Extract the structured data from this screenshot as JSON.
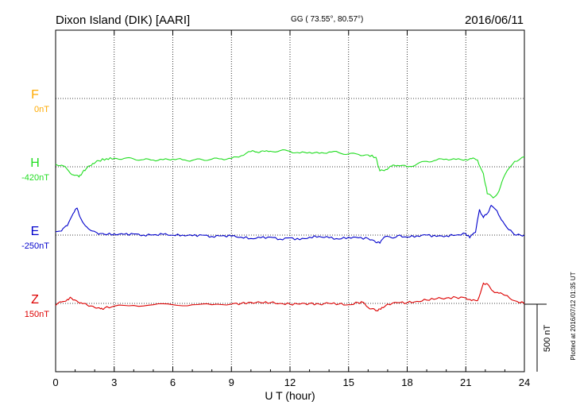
{
  "header": {
    "station": "Dixon Island (DIK)  [AARI]",
    "coords": "GG ( 73.55°,  80.57°)",
    "date": "2016/06/11"
  },
  "side_note": "Plotted at 2016/07/12 01:35 UT",
  "scale_bar_label": "500 nT",
  "colors": {
    "F": "#ffaa00",
    "H": "#22dd22",
    "E": "#0000cc",
    "Z": "#dd0000",
    "axis": "#000000"
  },
  "chart_data": {
    "type": "line",
    "xlabel": "U T (hour)",
    "xlim": [
      0,
      24
    ],
    "x_ticks": [
      0,
      3,
      6,
      9,
      12,
      15,
      18,
      21,
      24
    ],
    "series": [
      {
        "key": "F",
        "name": "F",
        "baseline_label": "0nT",
        "x": [],
        "y": []
      },
      {
        "key": "H",
        "name": "H",
        "baseline_label": "-420nT",
        "x": [
          0,
          0.3,
          0.6,
          0.9,
          1.2,
          1.4,
          1.6,
          1.9,
          2.2,
          2.6,
          3,
          3.5,
          4,
          4.5,
          5,
          5.5,
          6,
          6.5,
          7,
          7.5,
          8,
          8.5,
          9,
          9.5,
          10,
          10.3,
          10.6,
          11,
          11.5,
          12,
          12.5,
          13,
          13.5,
          14,
          14.5,
          15,
          15.5,
          16,
          16.4,
          16.6,
          16.9,
          17.2,
          17.5,
          18,
          18.5,
          19,
          19.5,
          20,
          20.5,
          21,
          21.3,
          21.6,
          21.9,
          22.1,
          22.4,
          22.7,
          23,
          23.5,
          24
        ],
        "y": [
          20,
          12,
          -20,
          -60,
          -75,
          -35,
          -8,
          25,
          45,
          60,
          63,
          62,
          58,
          53,
          50,
          53,
          57,
          52,
          48,
          53,
          57,
          58,
          62,
          82,
          113,
          110,
          118,
          115,
          120,
          115,
          102,
          107,
          100,
          110,
          105,
          95,
          92,
          88,
          70,
          -30,
          -20,
          5,
          10,
          0,
          20,
          40,
          50,
          57,
          55,
          55,
          60,
          50,
          -50,
          -200,
          -230,
          -180,
          -60,
          40,
          75
        ]
      },
      {
        "key": "E",
        "name": "E",
        "baseline_label": "-250nT",
        "x": [
          0,
          0.3,
          0.6,
          0.9,
          1.1,
          1.3,
          1.6,
          1.9,
          2.2,
          2.5,
          3,
          3.5,
          4,
          4.5,
          5,
          5.5,
          6,
          6.5,
          7,
          7.5,
          8,
          8.5,
          9,
          9.5,
          10,
          10.5,
          11,
          11.5,
          12,
          12.5,
          13,
          13.5,
          14,
          14.5,
          15,
          15.5,
          16,
          16.4,
          16.6,
          16.9,
          17.2,
          17.5,
          18,
          18.5,
          19,
          19.5,
          20,
          20.5,
          21,
          21.2,
          21.5,
          21.7,
          21.9,
          22.1,
          22.3,
          22.6,
          22.9,
          23.2,
          23.6,
          24
        ],
        "y": [
          25,
          30,
          70,
          160,
          200,
          120,
          60,
          30,
          5,
          5,
          8,
          5,
          8,
          0,
          2,
          5,
          0,
          0,
          -5,
          0,
          -10,
          -5,
          -8,
          -15,
          -25,
          -20,
          -15,
          -30,
          -20,
          -35,
          -15,
          -10,
          -20,
          -30,
          -15,
          -20,
          -25,
          -55,
          -60,
          -10,
          -20,
          -5,
          -15,
          -5,
          0,
          -10,
          -5,
          0,
          10,
          -20,
          20,
          190,
          130,
          160,
          220,
          180,
          100,
          40,
          0,
          0
        ]
      },
      {
        "key": "Z",
        "name": "Z",
        "baseline_label": "150nT",
        "x": [
          0,
          0.3,
          0.6,
          0.8,
          1,
          1.3,
          1.6,
          2,
          2.3,
          2.5,
          3,
          4,
          5,
          6,
          7,
          8,
          9,
          9.5,
          10,
          10.5,
          11,
          11.5,
          12,
          12.5,
          13,
          13.5,
          14,
          14.5,
          15,
          15.5,
          15.7,
          16,
          16.3,
          16.5,
          16.7,
          17,
          17.5,
          18,
          18.5,
          19,
          19.5,
          20,
          20.5,
          21,
          21.3,
          21.6,
          21.9,
          22.1,
          22.4,
          22.7,
          23,
          23.5,
          24
        ],
        "y": [
          -15,
          10,
          30,
          40,
          25,
          5,
          -10,
          -30,
          -40,
          -35,
          -20,
          -15,
          -10,
          -10,
          -10,
          -10,
          -5,
          0,
          8,
          5,
          5,
          0,
          -5,
          -5,
          0,
          -5,
          0,
          -5,
          -10,
          5,
          10,
          -30,
          -40,
          -55,
          -30,
          -5,
          5,
          5,
          15,
          25,
          35,
          40,
          45,
          40,
          20,
          20,
          150,
          145,
          90,
          75,
          60,
          20,
          0
        ]
      },
      {
        "key": "scale",
        "name": "",
        "x": [],
        "y": []
      }
    ]
  }
}
